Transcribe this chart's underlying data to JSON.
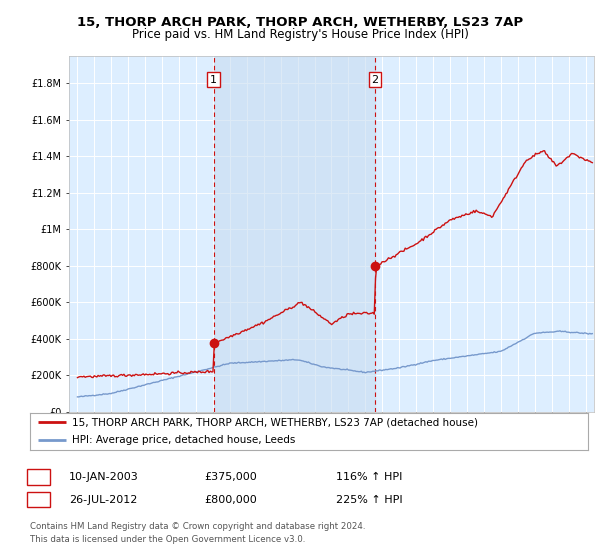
{
  "title": "15, THORP ARCH PARK, THORP ARCH, WETHERBY, LS23 7AP",
  "subtitle": "Price paid vs. HM Land Registry's House Price Index (HPI)",
  "ylim": [
    0,
    1900000
  ],
  "xlim_min": 1994.5,
  "xlim_max": 2025.5,
  "yticks": [
    0,
    200000,
    400000,
    600000,
    800000,
    1000000,
    1200000,
    1400000,
    1600000,
    1800000
  ],
  "ytick_labels": [
    "£0",
    "£200K",
    "£400K",
    "£600K",
    "£800K",
    "£1M",
    "£1.2M",
    "£1.4M",
    "£1.6M",
    "£1.8M"
  ],
  "background_color": "#ffffff",
  "plot_bg_color": "#ddeeff",
  "grid_color": "#ffffff",
  "hpi_color": "#7799cc",
  "price_color": "#cc1111",
  "marker1_date": 2003.04,
  "marker1_price": 375000,
  "marker2_date": 2012.57,
  "marker2_price": 800000,
  "legend_property": "15, THORP ARCH PARK, THORP ARCH, WETHERBY, LS23 7AP (detached house)",
  "legend_hpi": "HPI: Average price, detached house, Leeds",
  "table_row1": [
    "1",
    "10-JAN-2003",
    "£375,000",
    "116% ↑ HPI"
  ],
  "table_row2": [
    "2",
    "26-JUL-2012",
    "£800,000",
    "225% ↑ HPI"
  ],
  "footer_line1": "Contains HM Land Registry data © Crown copyright and database right 2024.",
  "footer_line2": "This data is licensed under the Open Government Licence v3.0.",
  "title_fontsize": 9.5,
  "subtitle_fontsize": 8.5,
  "tick_fontsize": 7,
  "legend_fontsize": 7.5
}
